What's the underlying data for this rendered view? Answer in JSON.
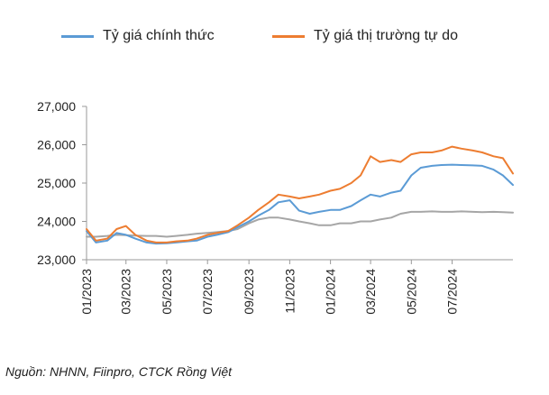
{
  "source_note": "Nguồn: NHNN, Fiinpro, CTCK Rồng Việt",
  "chart_data": {
    "type": "line",
    "title": "",
    "xlabel": "",
    "ylabel": "",
    "ylim": [
      23000,
      27000
    ],
    "yticks": [
      23000,
      24000,
      25000,
      26000,
      27000
    ],
    "ytick_labels": [
      "23,000",
      "24,000",
      "25,000",
      "26,000",
      "27,000"
    ],
    "xlim": [
      "2023-01-01",
      "2024-09-30"
    ],
    "xticks": [
      "2023-01",
      "2023-03",
      "2023-05",
      "2023-07",
      "2023-09",
      "2023-11",
      "2024-01",
      "2024-03",
      "2024-05",
      "2024-07"
    ],
    "xtick_labels": [
      "01/2023",
      "03/2023",
      "05/2023",
      "07/2023",
      "09/2023",
      "11/2023",
      "01/2024",
      "03/2024",
      "05/2024",
      "07/2024"
    ],
    "grid": false,
    "legend_position": "top",
    "series": [
      {
        "name": "Tỷ giá chính thức",
        "color": "#5b9bd5",
        "x": [
          "2023-01-01",
          "2023-01-15",
          "2023-02-01",
          "2023-02-15",
          "2023-03-01",
          "2023-03-15",
          "2023-04-01",
          "2023-04-15",
          "2023-05-01",
          "2023-05-15",
          "2023-06-01",
          "2023-06-15",
          "2023-07-01",
          "2023-07-15",
          "2023-08-01",
          "2023-08-15",
          "2023-09-01",
          "2023-09-15",
          "2023-10-01",
          "2023-10-15",
          "2023-11-01",
          "2023-11-15",
          "2023-12-01",
          "2023-12-15",
          "2024-01-01",
          "2024-01-15",
          "2024-02-01",
          "2024-02-15",
          "2024-03-01",
          "2024-03-15",
          "2024-04-01",
          "2024-04-15",
          "2024-05-01",
          "2024-05-15",
          "2024-06-01",
          "2024-06-15",
          "2024-07-01",
          "2024-07-15",
          "2024-08-01",
          "2024-08-15",
          "2024-09-01",
          "2024-09-15",
          "2024-09-30"
        ],
        "values": [
          23750,
          23450,
          23500,
          23700,
          23650,
          23550,
          23450,
          23420,
          23430,
          23450,
          23480,
          23500,
          23600,
          23650,
          23720,
          23850,
          24000,
          24150,
          24300,
          24500,
          24550,
          24280,
          24200,
          24250,
          24300,
          24300,
          24400,
          24550,
          24700,
          24650,
          24750,
          24800,
          25200,
          25400,
          25450,
          25470,
          25480,
          25470,
          25460,
          25450,
          25350,
          25200,
          24950
        ]
      },
      {
        "name": "Tỷ giá thị trường tự do",
        "color": "#ed7d31",
        "x": [
          "2023-01-01",
          "2023-01-15",
          "2023-02-01",
          "2023-02-15",
          "2023-03-01",
          "2023-03-15",
          "2023-04-01",
          "2023-04-15",
          "2023-05-01",
          "2023-05-15",
          "2023-06-01",
          "2023-06-15",
          "2023-07-01",
          "2023-07-15",
          "2023-08-01",
          "2023-08-15",
          "2023-09-01",
          "2023-09-15",
          "2023-10-01",
          "2023-10-15",
          "2023-11-01",
          "2023-11-15",
          "2023-12-01",
          "2023-12-15",
          "2024-01-01",
          "2024-01-15",
          "2024-02-01",
          "2024-02-15",
          "2024-03-01",
          "2024-03-15",
          "2024-04-01",
          "2024-04-15",
          "2024-05-01",
          "2024-05-15",
          "2024-06-01",
          "2024-06-15",
          "2024-07-01",
          "2024-07-15",
          "2024-08-01",
          "2024-08-15",
          "2024-09-01",
          "2024-09-15",
          "2024-09-30"
        ],
        "values": [
          23800,
          23500,
          23550,
          23800,
          23880,
          23650,
          23500,
          23450,
          23450,
          23480,
          23500,
          23550,
          23650,
          23700,
          23750,
          23900,
          24100,
          24300,
          24500,
          24700,
          24650,
          24600,
          24650,
          24700,
          24800,
          24850,
          25000,
          25200,
          25700,
          25550,
          25600,
          25550,
          25750,
          25800,
          25800,
          25850,
          25950,
          25900,
          25850,
          25800,
          25700,
          25650,
          25250
        ]
      },
      {
        "color": "#a6a6a6",
        "x": [
          "2023-01-01",
          "2023-01-15",
          "2023-02-01",
          "2023-02-15",
          "2023-03-01",
          "2023-03-15",
          "2023-04-01",
          "2023-04-15",
          "2023-05-01",
          "2023-05-15",
          "2023-06-01",
          "2023-06-15",
          "2023-07-01",
          "2023-07-15",
          "2023-08-01",
          "2023-08-15",
          "2023-09-01",
          "2023-09-15",
          "2023-10-01",
          "2023-10-15",
          "2023-11-01",
          "2023-11-15",
          "2023-12-01",
          "2023-12-15",
          "2024-01-01",
          "2024-01-15",
          "2024-02-01",
          "2024-02-15",
          "2024-03-01",
          "2024-03-15",
          "2024-04-01",
          "2024-04-15",
          "2024-05-01",
          "2024-05-15",
          "2024-06-01",
          "2024-06-15",
          "2024-07-01",
          "2024-07-15",
          "2024-08-01",
          "2024-08-15",
          "2024-09-01",
          "2024-09-15",
          "2024-09-30"
        ],
        "values": [
          23600,
          23600,
          23620,
          23650,
          23640,
          23630,
          23620,
          23620,
          23600,
          23620,
          23650,
          23680,
          23700,
          23720,
          23750,
          23800,
          23950,
          24050,
          24100,
          24100,
          24050,
          24000,
          23950,
          23900,
          23900,
          23950,
          23950,
          24000,
          24000,
          24050,
          24100,
          24200,
          24250,
          24250,
          24260,
          24250,
          24250,
          24260,
          24250,
          24240,
          24250,
          24240,
          24230
        ]
      }
    ]
  }
}
